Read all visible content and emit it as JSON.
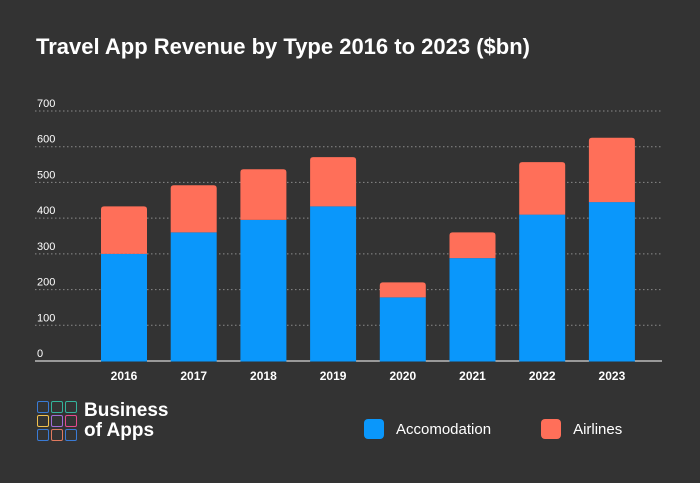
{
  "chart_data": {
    "type": "bar",
    "stacked": true,
    "title": "Travel App Revenue by Type 2016 to 2023 ($bn)",
    "categories": [
      "2016",
      "2017",
      "2018",
      "2019",
      "2020",
      "2021",
      "2022",
      "2023"
    ],
    "series": [
      {
        "name": "Accomodation",
        "color": "#0a97fb",
        "values": [
          300,
          360,
          395,
          433,
          178,
          288,
          410,
          445
        ]
      },
      {
        "name": "Airlines",
        "color": "#ff6f59",
        "values": [
          133,
          132,
          142,
          138,
          42,
          72,
          147,
          180
        ]
      }
    ],
    "ylim": [
      0,
      700
    ],
    "yticks": [
      0,
      100,
      200,
      300,
      400,
      500,
      600,
      700
    ],
    "grid": true,
    "legend": "bottom-right",
    "xlabel": "",
    "ylabel": ""
  },
  "logo": {
    "line1": "Business",
    "line2": "of Apps",
    "grid_colors": [
      "#3a7bd5",
      "#34b39b",
      "#34b39b",
      "#f2c14e",
      "#a06cd5",
      "#e64a8d",
      "#3a7bd5",
      "#e07a5f",
      "#3a7bd5"
    ]
  }
}
